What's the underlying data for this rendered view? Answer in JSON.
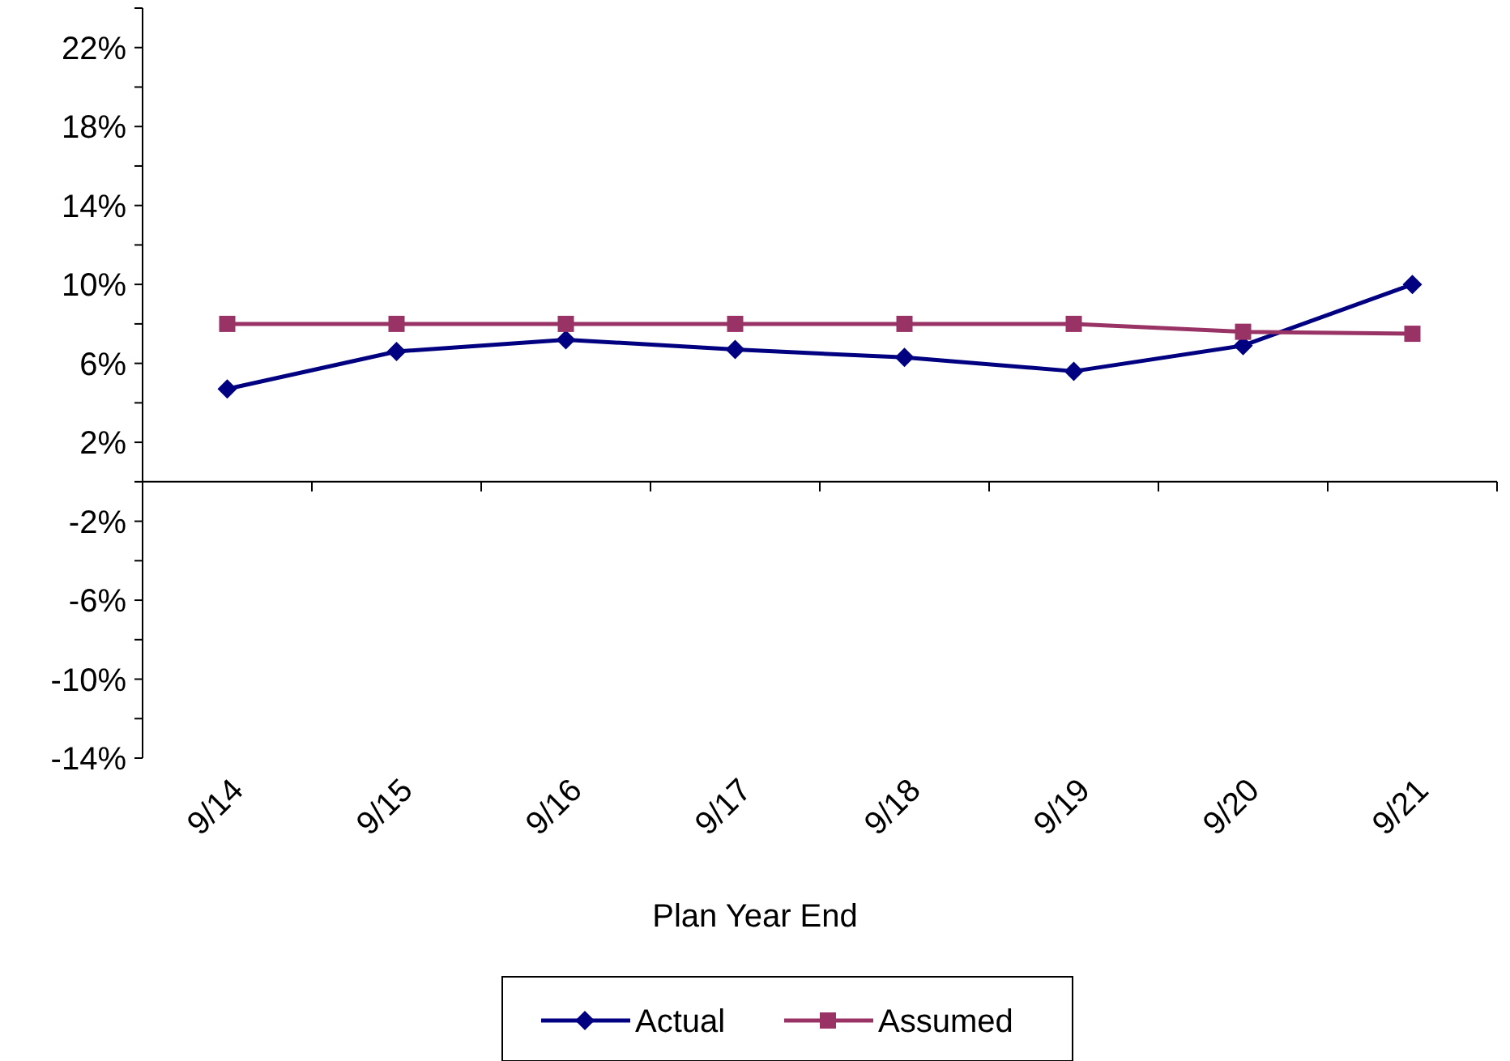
{
  "chart_data": {
    "type": "line",
    "xlabel": "Plan Year End",
    "categories": [
      "9/14",
      "9/15",
      "9/16",
      "9/17",
      "9/18",
      "9/19",
      "9/20",
      "9/21"
    ],
    "series": [
      {
        "name": "Actual",
        "color": "#000080",
        "marker": "diamond",
        "values": [
          4.7,
          6.6,
          7.2,
          6.7,
          6.3,
          5.6,
          6.9,
          10.0
        ]
      },
      {
        "name": "Assumed",
        "color": "#993366",
        "marker": "square",
        "values": [
          8.0,
          8.0,
          8.0,
          8.0,
          8.0,
          8.0,
          7.6,
          7.5
        ]
      }
    ],
    "ylim": [
      -14,
      24
    ],
    "yticks": [
      {
        "value": -14,
        "label": "-14%"
      },
      {
        "value": -12,
        "label": null
      },
      {
        "value": -10,
        "label": "-10%"
      },
      {
        "value": -8,
        "label": null
      },
      {
        "value": -6,
        "label": "-6%"
      },
      {
        "value": -4,
        "label": null
      },
      {
        "value": -2,
        "label": "-2%"
      },
      {
        "value": 0,
        "label": null
      },
      {
        "value": 2,
        "label": "2%"
      },
      {
        "value": 4,
        "label": null
      },
      {
        "value": 6,
        "label": "6%"
      },
      {
        "value": 8,
        "label": null
      },
      {
        "value": 10,
        "label": "10%"
      },
      {
        "value": 12,
        "label": null
      },
      {
        "value": 14,
        "label": "14%"
      },
      {
        "value": 16,
        "label": null
      },
      {
        "value": 18,
        "label": "18%"
      },
      {
        "value": 20,
        "label": null
      },
      {
        "value": 22,
        "label": "22%"
      },
      {
        "value": 24,
        "label": null
      }
    ],
    "legend": "bottom"
  }
}
